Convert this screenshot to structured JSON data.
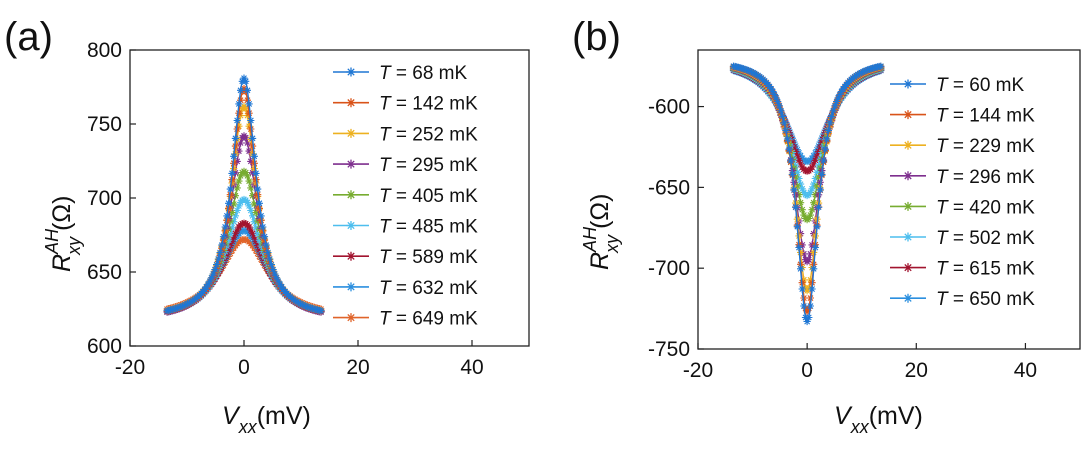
{
  "chart_data": [
    {
      "panel_label": "(a)",
      "type": "scatter",
      "xlabel": {
        "main": "V",
        "sub": "xx",
        "unit": "(mV)"
      },
      "ylabel": {
        "main": "R",
        "sup": "AH",
        "sub": "xy",
        "unit": "(Ω)"
      },
      "xlim": [
        -20,
        50
      ],
      "ylim": [
        600,
        800
      ],
      "xticks": [
        -20,
        0,
        20,
        40
      ],
      "yticks": [
        600,
        650,
        700,
        750,
        800
      ],
      "x_range": [
        -13.5,
        13.5
      ],
      "legend_position": "top-right",
      "series": [
        {
          "name": "68 mK",
          "peak": 781,
          "edge": 618,
          "width": 2.6,
          "color": "#1f77d4",
          "marker": "star"
        },
        {
          "name": "142 mK",
          "peak": 774,
          "edge": 618,
          "width": 2.6,
          "color": "#d95319",
          "marker": "star"
        },
        {
          "name": "252 mK",
          "peak": 762,
          "edge": 618,
          "width": 2.8,
          "color": "#edb120",
          "marker": "star"
        },
        {
          "name": "295 mK",
          "peak": 742,
          "edge": 617,
          "width": 3.0,
          "color": "#7e2f8e",
          "marker": "star"
        },
        {
          "name": "405 mK",
          "peak": 718,
          "edge": 617,
          "width": 3.4,
          "color": "#77ac30",
          "marker": "star"
        },
        {
          "name": "485 mK",
          "peak": 699,
          "edge": 617,
          "width": 3.8,
          "color": "#4dbeee",
          "marker": "star"
        },
        {
          "name": "589 mK",
          "peak": 683,
          "edge": 617,
          "width": 4.4,
          "color": "#a2142f",
          "marker": "star"
        },
        {
          "name": "632 mK",
          "peak": 678,
          "edge": 617,
          "width": 4.8,
          "color": "#2b8fdf",
          "marker": "star"
        },
        {
          "name": "649 mK",
          "peak": 672,
          "edge": 618,
          "width": 5.2,
          "color": "#e0642a",
          "marker": "star"
        }
      ]
    },
    {
      "panel_label": "(b)",
      "type": "scatter",
      "xlabel": {
        "main": "V",
        "sub": "xx",
        "unit": "(mV)"
      },
      "ylabel": {
        "main": "R",
        "sup": "AH",
        "sub": "xy",
        "unit": "(Ω)"
      },
      "xlim": [
        -20,
        50
      ],
      "ylim": [
        -750,
        -565
      ],
      "xticks": [
        -20,
        0,
        20,
        40
      ],
      "yticks": [
        -600,
        -650,
        -700,
        -750
      ],
      "x_range": [
        -13.5,
        13.5
      ],
      "legend_position": "top-right",
      "series": [
        {
          "name": "60 mK",
          "peak": -733,
          "edge": -570,
          "width": 2.4,
          "color": "#1f77d4",
          "marker": "star"
        },
        {
          "name": "144 mK",
          "peak": -727,
          "edge": -570,
          "width": 2.5,
          "color": "#d95319",
          "marker": "star"
        },
        {
          "name": "229 mK",
          "peak": -714,
          "edge": -570,
          "width": 2.7,
          "color": "#edb120",
          "marker": "star"
        },
        {
          "name": "296 mK",
          "peak": -696,
          "edge": -570,
          "width": 3.0,
          "color": "#7e2f8e",
          "marker": "star"
        },
        {
          "name": "420 mK",
          "peak": -670,
          "edge": -570,
          "width": 3.5,
          "color": "#77ac30",
          "marker": "star"
        },
        {
          "name": "502 mK",
          "peak": -655,
          "edge": -570,
          "width": 4.0,
          "color": "#4dbeee",
          "marker": "star"
        },
        {
          "name": "615 mK",
          "peak": -640,
          "edge": -570,
          "width": 4.6,
          "color": "#a2142f",
          "marker": "star"
        },
        {
          "name": "650 mK",
          "peak": -634,
          "edge": -570,
          "width": 5.0,
          "color": "#2b8fdf",
          "marker": "star"
        }
      ]
    }
  ],
  "legend_prefix": "T",
  "legend_equals": " = "
}
